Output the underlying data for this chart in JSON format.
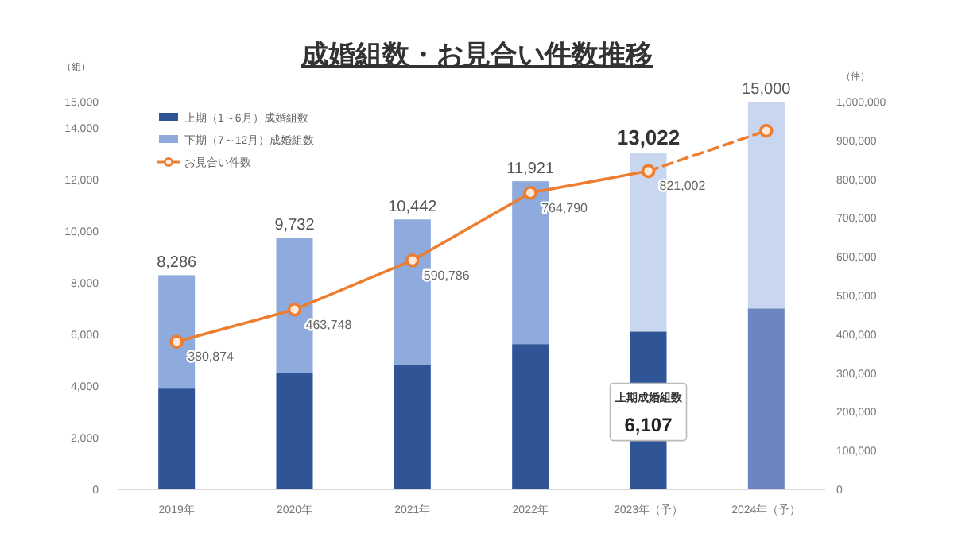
{
  "chart_data": {
    "type": "bar",
    "title": "成婚組数・お見合い件数推移",
    "ylabel": "（組）",
    "y2label": "（件）",
    "categories": [
      "2019年",
      "2020年",
      "2021年",
      "2022年",
      "2023年（予）",
      "2024年（予）"
    ],
    "stacked": true,
    "legend": "top left",
    "marker": "circle",
    "ylim": [
      0,
      15000
    ],
    "yticks": [
      0,
      {
        "value": 2000,
        "label": "2,000"
      },
      {
        "value": 4000,
        "label": "4,000"
      },
      {
        "value": 6000,
        "label": "6,000"
      },
      {
        "value": 8000,
        "label": "8,000"
      },
      {
        "value": 10000,
        "label": "10,000"
      },
      {
        "value": 12000,
        "label": "12,000"
      },
      {
        "value": 14000,
        "label": "14,000"
      },
      {
        "value": 15000,
        "label": "15,000"
      }
    ],
    "y2lim": [
      0,
      1000000
    ],
    "y2ticks": [
      0,
      {
        "value": 100000,
        "label": "100,000"
      },
      {
        "value": 200000,
        "label": "200,000"
      },
      {
        "value": 300000,
        "label": "300,000"
      },
      {
        "value": 400000,
        "label": "400,000"
      },
      {
        "value": 500000,
        "label": "500,000"
      },
      {
        "value": 600000,
        "label": "600,000"
      },
      {
        "value": 700000,
        "label": "700,000"
      },
      {
        "value": 800000,
        "label": "800,000"
      },
      {
        "value": 900000,
        "label": "900,000"
      },
      {
        "value": 1000000,
        "label": "1,000,000"
      }
    ],
    "totals": [
      "8,286",
      "9,732",
      "10,442",
      "11,921",
      "13,022",
      "15,000"
    ],
    "annotations": [
      "上期成婚組数"
    ],
    "series": [
      {
        "name": "上期（1～6月）成婚組数",
        "color": "#2f5597",
        "colors": [
          "#2f5597",
          "#2f5597",
          "#2f5597",
          "#2f5597",
          "#2f5597",
          "#6b86bf"
        ],
        "values": [
          3900,
          4490,
          4840,
          5620,
          6107,
          7000
        ],
        "value_labels": [
          null,
          null,
          null,
          null,
          "6,107",
          null
        ]
      },
      {
        "name": "下期（7～12月）成婚組数",
        "color": "#8faadc",
        "colors": [
          "#8faadc",
          "#8faadc",
          "#8faadc",
          "#8faadc",
          "#c9d6ef",
          "#c9d6ef"
        ],
        "values": [
          4386,
          5242,
          5602,
          6301,
          6915,
          8000
        ]
      },
      {
        "name": "お見合い件数",
        "type": "line",
        "axis": "y2",
        "color": "#ed7d31",
        "line_style": "solid",
        "values": [
          380874,
          463748,
          590786,
          764790,
          821002,
          null
        ],
        "value_labels": [
          "380,874",
          "463,748",
          "590,786",
          "764,790",
          "821,002",
          null
        ]
      },
      {
        "type": "line",
        "axis": "y2",
        "color": "#ed7d31",
        "line_style": "dashed",
        "values": [
          null,
          null,
          null,
          null,
          821002,
          925000
        ]
      }
    ]
  }
}
